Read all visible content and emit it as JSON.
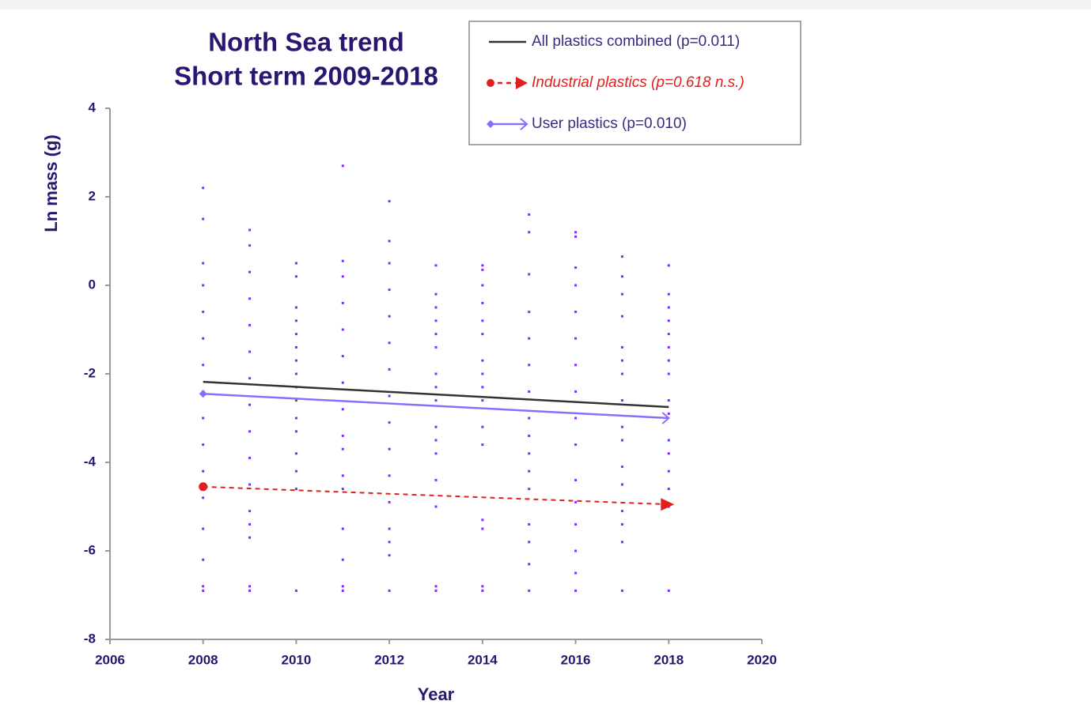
{
  "chart_data": {
    "type": "scatter",
    "title": "North Sea trend",
    "subtitle": "Short term 2009-2018",
    "x_label": "Year",
    "y_label": "Ln mass (g)",
    "xlim": [
      2006,
      2020
    ],
    "xticks": [
      2006,
      2008,
      2010,
      2012,
      2014,
      2016,
      2018,
      2020
    ],
    "ylim": [
      -8,
      4
    ],
    "yticks": [
      -8,
      -6,
      -4,
      -2,
      0,
      2,
      4
    ],
    "grid": false,
    "legend": "top-right",
    "series": [
      {
        "type": "scatter",
        "color": "#7b2ff7",
        "x": [
          2008,
          2008,
          2008,
          2008,
          2008,
          2008,
          2008,
          2008,
          2008,
          2008,
          2008,
          2008,
          2008,
          2008,
          2008,
          2008
        ],
        "values": [
          2.2,
          1.5,
          0.5,
          0,
          -0.6,
          -1.2,
          -1.8,
          -2.4,
          -3,
          -3.6,
          -4.2,
          -4.8,
          -5.5,
          -6.2,
          -6.8,
          -6.9
        ]
      },
      {
        "type": "scatter",
        "color": "#7b2ff7",
        "x": [
          2009,
          2009,
          2009,
          2009,
          2009,
          2009,
          2009,
          2009,
          2009,
          2009,
          2009,
          2009,
          2009,
          2009,
          2009,
          2009
        ],
        "values": [
          1.25,
          0.9,
          0.3,
          -0.3,
          -0.9,
          -1.5,
          -2.1,
          -2.7,
          -3.3,
          -3.9,
          -4.5,
          -5.1,
          -5.4,
          -5.7,
          -6.8,
          -6.9
        ]
      },
      {
        "type": "scatter",
        "color": "#7b2ff7",
        "x": [
          2010,
          2010,
          2010,
          2010,
          2010,
          2010,
          2010,
          2010,
          2010,
          2010,
          2010,
          2010,
          2010,
          2010,
          2010,
          2010
        ],
        "values": [
          0.5,
          0.2,
          -0.5,
          -0.8,
          -1.1,
          -1.4,
          -1.7,
          -2,
          -2.3,
          -2.6,
          -3,
          -3.3,
          -3.8,
          -4.2,
          -4.6,
          -6.9
        ]
      },
      {
        "type": "scatter",
        "color": "#7b2ff7",
        "x": [
          2011,
          2011,
          2011,
          2011,
          2011,
          2011,
          2011,
          2011,
          2011,
          2011,
          2011,
          2011,
          2011,
          2011,
          2011,
          2011
        ],
        "values": [
          2.7,
          0.55,
          0.2,
          -0.4,
          -1,
          -1.6,
          -2.2,
          -2.8,
          -3.4,
          -3.7,
          -4.3,
          -4.6,
          -5.5,
          -6.2,
          -6.8,
          -6.9
        ]
      },
      {
        "type": "scatter",
        "color": "#7b2ff7",
        "x": [
          2012,
          2012,
          2012,
          2012,
          2012,
          2012,
          2012,
          2012,
          2012,
          2012,
          2012,
          2012,
          2012,
          2012,
          2012,
          2012
        ],
        "values": [
          1.9,
          1,
          0.5,
          -0.1,
          -0.7,
          -1.3,
          -1.9,
          -2.5,
          -3.1,
          -3.7,
          -4.3,
          -4.9,
          -5.5,
          -5.8,
          -6.1,
          -6.9
        ]
      },
      {
        "type": "scatter",
        "color": "#7b2ff7",
        "x": [
          2013,
          2013,
          2013,
          2013,
          2013,
          2013,
          2013,
          2013,
          2013,
          2013,
          2013,
          2013,
          2013,
          2013,
          2013,
          2013
        ],
        "values": [
          0.45,
          -0.2,
          -0.5,
          -0.8,
          -1.1,
          -1.4,
          -2,
          -2.3,
          -2.6,
          -3.2,
          -3.5,
          -3.8,
          -4.4,
          -5,
          -6.8,
          -6.9
        ]
      },
      {
        "type": "scatter",
        "color": "#7b2ff7",
        "x": [
          2014,
          2014,
          2014,
          2014,
          2014,
          2014,
          2014,
          2014,
          2014,
          2014,
          2014,
          2014,
          2014,
          2014,
          2014,
          2014
        ],
        "values": [
          0.45,
          0.35,
          0,
          -0.4,
          -0.8,
          -1.1,
          -1.7,
          -2,
          -2.3,
          -2.6,
          -3.2,
          -3.6,
          -5.3,
          -5.5,
          -6.8,
          -6.9
        ]
      },
      {
        "type": "scatter",
        "color": "#7b2ff7",
        "x": [
          2015,
          2015,
          2015,
          2015,
          2015,
          2015,
          2015,
          2015,
          2015,
          2015,
          2015,
          2015,
          2015,
          2015,
          2015,
          2015
        ],
        "values": [
          1.6,
          1.2,
          0.25,
          -0.6,
          -1.2,
          -1.8,
          -2.4,
          -3,
          -3.4,
          -3.8,
          -4.2,
          -4.6,
          -5.4,
          -5.8,
          -6.3,
          -6.9
        ]
      },
      {
        "type": "scatter",
        "color": "#7b2ff7",
        "x": [
          2016,
          2016,
          2016,
          2016,
          2016,
          2016,
          2016,
          2016,
          2016,
          2016,
          2016,
          2016,
          2016,
          2016,
          2016,
          2016
        ],
        "values": [
          1.2,
          1.1,
          0.4,
          0,
          -0.6,
          -1.2,
          -1.8,
          -2.4,
          -3,
          -3.6,
          -4.4,
          -4.9,
          -5.4,
          -6,
          -6.5,
          -6.9
        ]
      },
      {
        "type": "scatter",
        "color": "#7b2ff7",
        "x": [
          2017,
          2017,
          2017,
          2017,
          2017,
          2017,
          2017,
          2017,
          2017,
          2017,
          2017,
          2017,
          2017,
          2017,
          2017,
          2017
        ],
        "values": [
          0.65,
          0.2,
          -0.2,
          -0.7,
          -1.4,
          -1.7,
          -2,
          -2.6,
          -3.2,
          -3.5,
          -4.1,
          -4.5,
          -5.1,
          -5.4,
          -5.8,
          -6.9
        ]
      },
      {
        "type": "scatter",
        "color": "#7b2ff7",
        "x": [
          2018,
          2018,
          2018,
          2018,
          2018,
          2018,
          2018,
          2018,
          2018,
          2018,
          2018,
          2018,
          2018,
          2018,
          2018,
          2018
        ],
        "values": [
          0.45,
          -0.2,
          -0.5,
          -0.8,
          -1.1,
          -1.4,
          -1.7,
          -2,
          -2.6,
          -2.9,
          -3.5,
          -3.8,
          -4.2,
          -4.6,
          -5,
          -6.9
        ]
      },
      {
        "type": "line",
        "name": "All plastics combined (p=0.011)",
        "color": "#333333",
        "dashed": false,
        "marker_start": "none",
        "marker_end": "none",
        "x": [
          2008,
          2018
        ],
        "values": [
          -2.18,
          -2.75
        ]
      },
      {
        "type": "line",
        "name": "Industrial plastics (p=0.618 n.s.)",
        "color": "#e0201c",
        "dashed": true,
        "marker_start": "circle",
        "marker_end": "triangle",
        "x": [
          2008,
          2018
        ],
        "values": [
          -4.55,
          -4.95
        ]
      },
      {
        "type": "line",
        "name": "User plastics (p=0.010)",
        "color": "#8a6cff",
        "dashed": false,
        "marker_start": "diamond",
        "marker_end": "arrow",
        "x": [
          2008,
          2018
        ],
        "values": [
          -2.45,
          -3.0
        ]
      }
    ]
  }
}
